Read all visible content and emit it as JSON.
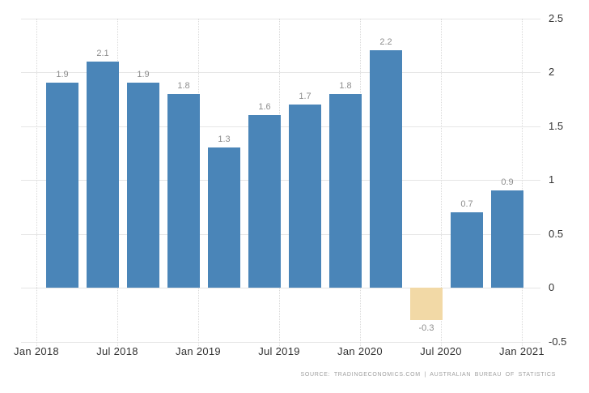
{
  "chart": {
    "source_line": "SOURCE: TRADINGECONOMICS.COM | AUSTRALIAN BUREAU OF STATISTICS"
  },
  "colors": {
    "background": "#ffffff",
    "bar_positive": "#4a85b8",
    "bar_negative": "#f2d9a6",
    "h_gridline": "#e6e6e6",
    "v_gridline": "#d9d9d9",
    "axis_label": "#333333",
    "value_label": "#8e8e8e",
    "source_text": "#9e9e9e"
  },
  "chart_data": {
    "type": "bar",
    "title": "",
    "xlabel": "",
    "ylabel": "",
    "categories": [
      "Q1 2018",
      "Q2 2018",
      "Q3 2018",
      "Q4 2018",
      "Q1 2019",
      "Q2 2019",
      "Q3 2019",
      "Q4 2019",
      "Q1 2020",
      "Q2 2020",
      "Q3 2020",
      "Q4 2020"
    ],
    "values": [
      1.9,
      2.1,
      1.9,
      1.8,
      1.3,
      1.6,
      1.7,
      1.8,
      2.2,
      -0.3,
      0.7,
      0.9
    ],
    "value_labels": [
      "1.9",
      "2.1",
      "1.9",
      "1.8",
      "1.3",
      "1.6",
      "1.7",
      "1.8",
      "2.2",
      "-0.3",
      "0.7",
      "0.9"
    ],
    "x_tick_labels": [
      "Jan 2018",
      "Jul 2018",
      "Jan 2019",
      "Jul 2019",
      "Jan 2020",
      "Jul 2020",
      "Jan 2021"
    ],
    "y_ticks": [
      2.5,
      2,
      1.5,
      1,
      0.5,
      0,
      -0.5
    ],
    "y_tick_labels": [
      "2.5",
      "2",
      "1.5",
      "1",
      "0.5",
      "0",
      "-0.5"
    ],
    "ylim": [
      -0.5,
      2.5
    ],
    "grid": true,
    "legend": "none",
    "y_axis_position": "right"
  }
}
